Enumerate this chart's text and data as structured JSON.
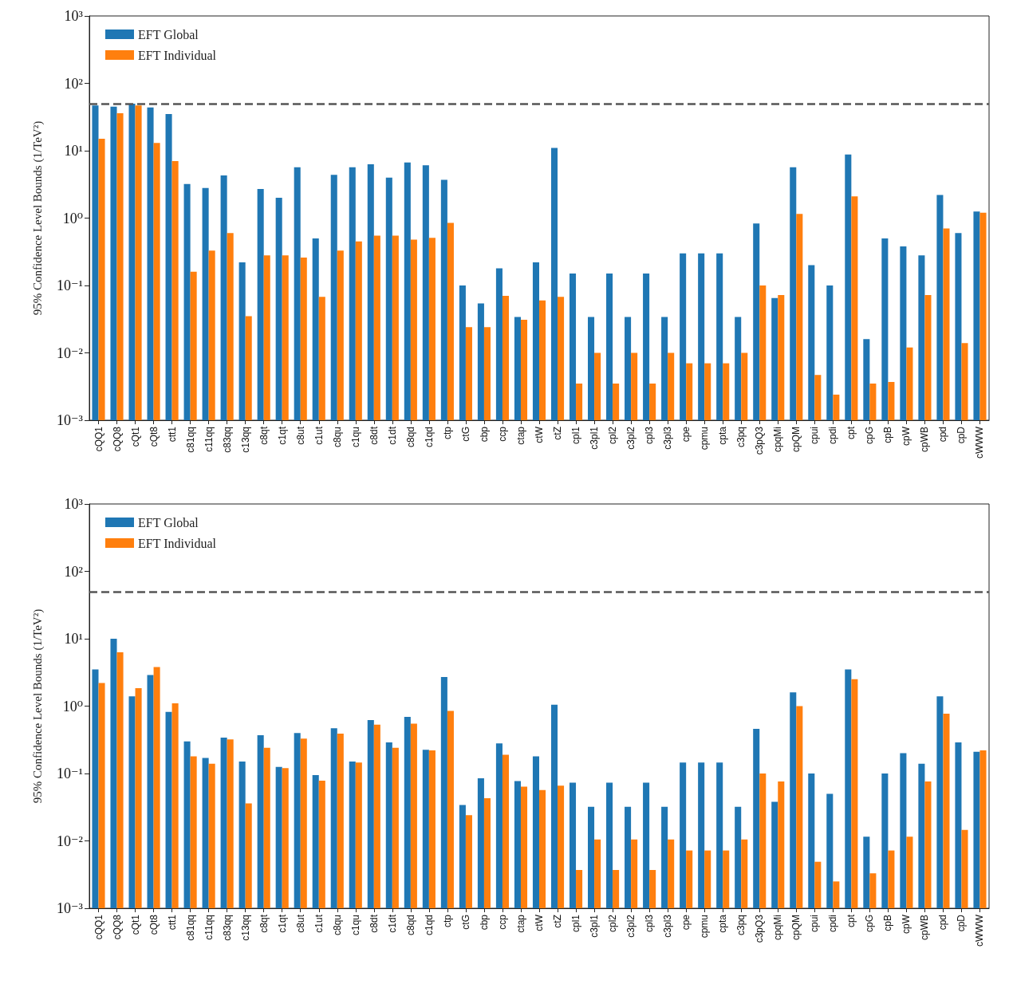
{
  "chart_data": [
    {
      "type": "bar",
      "ylabel": "95% Confidence Level Bounds (1/TeV²)",
      "log": true,
      "grid": false,
      "legend": "top left",
      "categories": [
        "cQQ1",
        "cQQ8",
        "cQt1",
        "cQt8",
        "ctt1",
        "c81qq",
        "c11qq",
        "c83qq",
        "c13qq",
        "c8qt",
        "c1qt",
        "c8ut",
        "c1ut",
        "c8qu",
        "c1qu",
        "c8dt",
        "c1dt",
        "c8qd",
        "c1qd",
        "ctp",
        "ctG",
        "cbp",
        "ccp",
        "ctap",
        "ctW",
        "ctZ",
        "cpl1",
        "c3pl1",
        "cpl2",
        "c3pl2",
        "cpl3",
        "c3pl3",
        "cpe",
        "cpmu",
        "cpta",
        "c3pq",
        "c3pQ3",
        "cpqMi",
        "cpQM",
        "cpui",
        "cpdi",
        "cpt",
        "cpG",
        "cpB",
        "cpW",
        "cpWB",
        "cpd",
        "cpD",
        "cWWW"
      ],
      "ylim": [
        0.001,
        1000
      ],
      "yticks": [
        {
          "value": 0.001,
          "label": "10⁻³"
        },
        {
          "value": 0.01,
          "label": "10⁻²"
        },
        {
          "value": 0.1,
          "label": "10⁻¹"
        },
        {
          "value": 1,
          "label": "10⁰"
        },
        {
          "value": 10,
          "label": "10¹"
        },
        {
          "value": 100,
          "label": "10²"
        },
        {
          "value": 1000,
          "label": "10³"
        }
      ],
      "ref_lines": [
        {
          "axis": "y",
          "value": 50,
          "color": "#555555",
          "line_style": "dashed"
        }
      ],
      "series": [
        {
          "name": "EFT Global",
          "color": "#1f77b4",
          "values": [
            47,
            45,
            50,
            44,
            35,
            3.2,
            2.8,
            4.3,
            0.22,
            2.7,
            2.0,
            5.7,
            0.5,
            4.4,
            5.7,
            6.3,
            4.0,
            6.7,
            6.1,
            3.7,
            0.1,
            0.054,
            0.18,
            0.034,
            0.22,
            11,
            0.15,
            0.034,
            0.15,
            0.034,
            0.15,
            0.034,
            0.3,
            0.3,
            0.3,
            0.034,
            0.83,
            0.065,
            5.7,
            0.2,
            0.1,
            8.8,
            0.016,
            0.5,
            0.38,
            0.28,
            2.2,
            0.6,
            1.25
          ]
        },
        {
          "name": "EFT Individual",
          "color": "#ff7f0e",
          "values": [
            15,
            36,
            47,
            13,
            7,
            0.16,
            0.33,
            0.6,
            0.035,
            0.28,
            0.28,
            0.26,
            0.068,
            0.33,
            0.45,
            0.55,
            0.55,
            0.48,
            0.51,
            0.85,
            0.024,
            0.024,
            0.07,
            0.031,
            0.06,
            0.068,
            0.0035,
            0.01,
            0.0035,
            0.01,
            0.0035,
            0.01,
            0.007,
            0.007,
            0.007,
            0.01,
            0.1,
            0.072,
            1.15,
            0.0047,
            0.0024,
            2.1,
            0.0035,
            0.0037,
            0.012,
            0.072,
            0.7,
            0.014,
            1.2
          ]
        }
      ]
    },
    {
      "type": "bar",
      "ylabel": "95% Confidence Level Bounds (1/TeV²)",
      "log": true,
      "grid": false,
      "legend": "top left",
      "categories": [
        "cQQ1",
        "cQQ8",
        "cQt1",
        "cQt8",
        "ctt1",
        "c81qq",
        "c11qq",
        "c83qq",
        "c13qq",
        "c8qt",
        "c1qt",
        "c8ut",
        "c1ut",
        "c8qu",
        "c1qu",
        "c8dt",
        "c1dt",
        "c8qd",
        "c1qd",
        "ctp",
        "ctG",
        "cbp",
        "ccp",
        "ctap",
        "ctW",
        "ctZ",
        "cpl1",
        "c3pl1",
        "cpl2",
        "c3pl2",
        "cpl3",
        "c3pl3",
        "cpe",
        "cpmu",
        "cpta",
        "c3pq",
        "c3pQ3",
        "cpqMi",
        "cpQM",
        "cpui",
        "cpdi",
        "cpt",
        "cpG",
        "cpB",
        "cpW",
        "cpWB",
        "cpd",
        "cpD",
        "cWWW"
      ],
      "ylim": [
        0.001,
        1000
      ],
      "yticks": [
        {
          "value": 0.001,
          "label": "10⁻³"
        },
        {
          "value": 0.01,
          "label": "10⁻²"
        },
        {
          "value": 0.1,
          "label": "10⁻¹"
        },
        {
          "value": 1,
          "label": "10⁰"
        },
        {
          "value": 10,
          "label": "10¹"
        },
        {
          "value": 100,
          "label": "10²"
        },
        {
          "value": 1000,
          "label": "10³"
        }
      ],
      "ref_lines": [
        {
          "axis": "y",
          "value": 50,
          "color": "#555555",
          "line_style": "dashed"
        }
      ],
      "series": [
        {
          "name": "EFT Global",
          "color": "#1f77b4",
          "values": [
            3.5,
            10,
            1.4,
            2.9,
            0.82,
            0.3,
            0.17,
            0.34,
            0.15,
            0.37,
            0.125,
            0.4,
            0.095,
            0.47,
            0.15,
            0.62,
            0.29,
            0.69,
            0.225,
            2.7,
            0.034,
            0.085,
            0.28,
            0.077,
            0.18,
            1.05,
            0.073,
            0.032,
            0.073,
            0.032,
            0.073,
            0.032,
            0.145,
            0.145,
            0.145,
            0.032,
            0.46,
            0.038,
            1.6,
            0.1,
            0.05,
            3.5,
            0.0115,
            0.1,
            0.2,
            0.14,
            1.4,
            0.29,
            0.21
          ]
        },
        {
          "name": "EFT Individual",
          "color": "#ff7f0e",
          "values": [
            2.2,
            6.3,
            1.85,
            3.8,
            1.1,
            0.18,
            0.14,
            0.32,
            0.036,
            0.24,
            0.12,
            0.33,
            0.078,
            0.39,
            0.145,
            0.53,
            0.24,
            0.55,
            0.22,
            0.85,
            0.024,
            0.043,
            0.19,
            0.064,
            0.057,
            0.066,
            0.0037,
            0.0105,
            0.0037,
            0.0105,
            0.0037,
            0.0105,
            0.0072,
            0.0072,
            0.0072,
            0.0105,
            0.1,
            0.076,
            1.0,
            0.0049,
            0.0025,
            2.5,
            0.0033,
            0.0072,
            0.0115,
            0.076,
            0.77,
            0.0145,
            0.22
          ]
        }
      ]
    }
  ]
}
